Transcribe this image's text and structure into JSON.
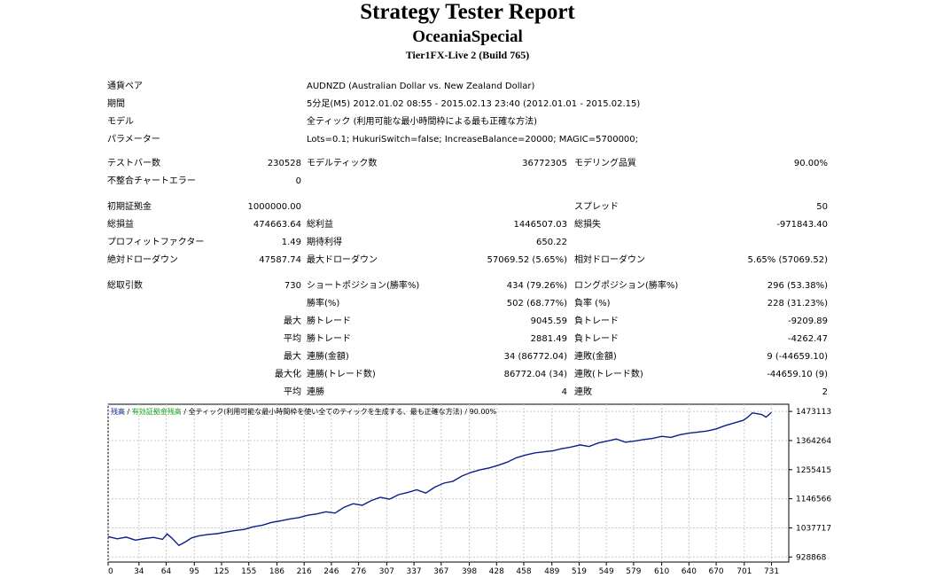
{
  "header": {
    "title": "Strategy Tester Report",
    "subtitle": "OceaniaSpecial",
    "build": "Tier1FX-Live 2 (Build 765)"
  },
  "info": {
    "pair_label": "通貨ペア",
    "pair_value": "AUDNZD (Australian Dollar vs. New Zealand Dollar)",
    "period_label": "期間",
    "period_value": "5分足(M5) 2012.01.02 08:55 - 2015.02.13 23:40 (2012.01.01 - 2015.02.15)",
    "model_label": "モデル",
    "model_value": "全ティック (利用可能な最小時間枠による最も正確な方法)",
    "params_label": "パラメーター",
    "params_value": "Lots=0.1; HukuriSwitch=false; IncreaseBalance=20000; MAGIC=5700000;"
  },
  "stats": {
    "bars_label": "テストバー数",
    "bars_value": "230528",
    "ticks_label": "モデルティック数",
    "ticks_value": "36772305",
    "quality_label": "モデリング品質",
    "quality_value": "90.00%",
    "mismatch_label": "不整合チャートエラー",
    "mismatch_value": "0",
    "deposit_label": "初期証拠金",
    "deposit_value": "1000000.00",
    "spread_label": "スプレッド",
    "spread_value": "50",
    "net_label": "総損益",
    "net_value": "474663.64",
    "gross_profit_label": "総利益",
    "gross_profit_value": "1446507.03",
    "gross_loss_label": "総損失",
    "gross_loss_value": "-971843.40",
    "pf_label": "プロフィットファクター",
    "pf_value": "1.49",
    "expected_label": "期待利得",
    "expected_value": "650.22",
    "abs_dd_label": "絶対ドローダウン",
    "abs_dd_value": "47587.74",
    "max_dd_label": "最大ドローダウン",
    "max_dd_value": "57069.52 (5.65%)",
    "rel_dd_label": "相対ドローダウン",
    "rel_dd_value": "5.65% (57069.52)",
    "total_trades_label": "総取引数",
    "total_trades_value": "730",
    "short_label": "ショートポジション(勝率%)",
    "short_value": "434 (79.26%)",
    "long_label": "ロングポジション(勝率%)",
    "long_value": "296 (53.38%)",
    "win_pct_label": "勝率(%)",
    "win_pct_value": "502 (68.77%)",
    "loss_pct_label": "負率 (%)",
    "loss_pct_value": "228 (31.23%)",
    "largest_prefix": "最大",
    "largest_win_label": "勝トレード",
    "largest_win_value": "9045.59",
    "largest_loss_label": "負トレード",
    "largest_loss_value": "-9209.89",
    "average_prefix": "平均",
    "avg_win_label": "勝トレード",
    "avg_win_value": "2881.49",
    "avg_loss_label": "負トレード",
    "avg_loss_value": "-4262.47",
    "max_consec_prefix": "最大",
    "max_consec_win_label": "連勝(金額)",
    "max_consec_win_value": "34 (86772.04)",
    "max_consec_loss_label": "連敗(金額)",
    "max_consec_loss_value": "9 (-44659.10)",
    "maximal_prefix": "最大化",
    "maximal_win_label": "連勝(トレード数)",
    "maximal_win_value": "86772.04 (34)",
    "maximal_loss_label": "連敗(トレード数)",
    "maximal_loss_value": "-44659.10 (9)",
    "avg_consec_prefix": "平均",
    "avg_consec_win_label": "連勝",
    "avg_consec_win_value": "4",
    "avg_consec_loss_label": "連敗",
    "avg_consec_loss_value": "2"
  },
  "chart_data": {
    "type": "line",
    "legend": {
      "balance": "残高",
      "sep1": " / ",
      "equity": "有効証拠金残高",
      "sep2": " / ",
      "rest": "全ティック(利用可能な最小時間枠を使い全てのティックを生成する、最も正確な方法) / 90.00%"
    },
    "colors": {
      "line": "#0b1f8c",
      "balance_label": "#0b1f8c",
      "equity_label": "#17a31a",
      "grid": "#c8c8c8"
    },
    "xticks": [
      0,
      34,
      64,
      95,
      125,
      155,
      186,
      216,
      246,
      276,
      307,
      337,
      367,
      398,
      428,
      458,
      489,
      519,
      549,
      579,
      610,
      640,
      670,
      701,
      731
    ],
    "yticks": [
      928868,
      1037717,
      1146566,
      1255415,
      1364264,
      1473113
    ],
    "xlim": [
      0,
      750
    ],
    "ylim": [
      910000,
      1500000
    ],
    "grid": true,
    "series": [
      {
        "name": "残高",
        "x": [
          0,
          10,
          20,
          30,
          40,
          50,
          60,
          65,
          70,
          78,
          85,
          92,
          100,
          110,
          120,
          130,
          140,
          150,
          160,
          170,
          180,
          190,
          200,
          210,
          220,
          230,
          240,
          250,
          260,
          270,
          280,
          290,
          300,
          310,
          320,
          330,
          340,
          350,
          360,
          370,
          380,
          390,
          400,
          410,
          420,
          430,
          440,
          450,
          460,
          470,
          480,
          490,
          500,
          510,
          520,
          530,
          540,
          550,
          560,
          570,
          580,
          590,
          600,
          610,
          620,
          630,
          640,
          650,
          660,
          670,
          680,
          690,
          700,
          705,
          710,
          720,
          725,
          731
        ],
        "y": [
          1005000,
          997000,
          1003000,
          992000,
          998000,
          1002000,
          995000,
          1015000,
          1000000,
          972000,
          985000,
          1000000,
          1008000,
          1013000,
          1016000,
          1022000,
          1028000,
          1032000,
          1042000,
          1048000,
          1058000,
          1064000,
          1071000,
          1076000,
          1085000,
          1090000,
          1098000,
          1093000,
          1115000,
          1128000,
          1122000,
          1140000,
          1152000,
          1145000,
          1162000,
          1170000,
          1180000,
          1168000,
          1190000,
          1205000,
          1212000,
          1232000,
          1245000,
          1255000,
          1262000,
          1272000,
          1284000,
          1300000,
          1310000,
          1318000,
          1322000,
          1326000,
          1334000,
          1340000,
          1348000,
          1342000,
          1355000,
          1362000,
          1370000,
          1358000,
          1362000,
          1368000,
          1372000,
          1380000,
          1376000,
          1386000,
          1392000,
          1396000,
          1400000,
          1408000,
          1420000,
          1430000,
          1440000,
          1452000,
          1468000,
          1462000,
          1452000,
          1470000
        ]
      }
    ]
  }
}
